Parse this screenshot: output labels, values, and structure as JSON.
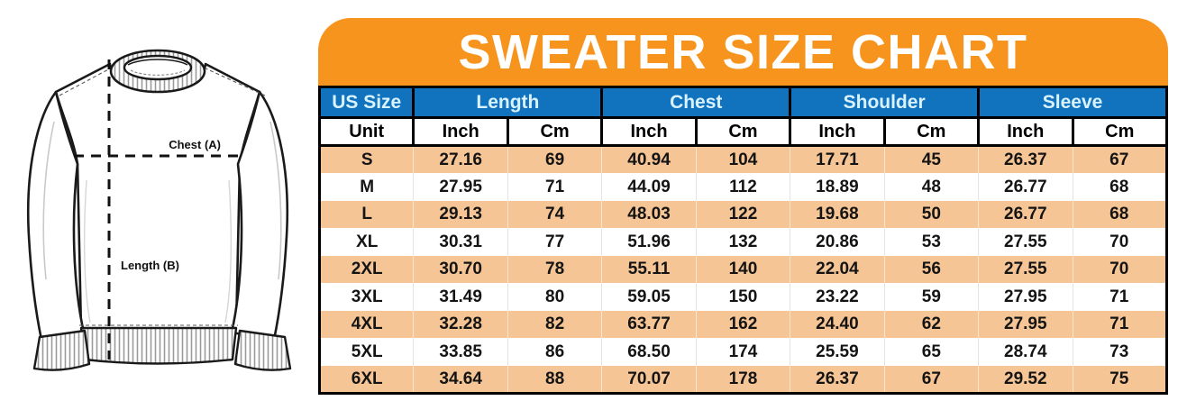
{
  "title": "SWEATER SIZE CHART",
  "diagram": {
    "name": "crewneck-sweater-measurement-diagram",
    "chest_label": "Chest (A)",
    "length_label": "Length (B)"
  },
  "table": {
    "group_headers": [
      "US Size",
      "Length",
      "Chest",
      "Shoulder",
      "Sleeve"
    ],
    "unit_row": [
      "Unit",
      "Inch",
      "Cm",
      "Inch",
      "Cm",
      "Inch",
      "Cm",
      "Inch",
      "Cm"
    ],
    "rows": [
      [
        "S",
        "27.16",
        "69",
        "40.94",
        "104",
        "17.71",
        "45",
        "26.37",
        "67"
      ],
      [
        "M",
        "27.95",
        "71",
        "44.09",
        "112",
        "18.89",
        "48",
        "26.77",
        "68"
      ],
      [
        "L",
        "29.13",
        "74",
        "48.03",
        "122",
        "19.68",
        "50",
        "26.77",
        "68"
      ],
      [
        "XL",
        "30.31",
        "77",
        "51.96",
        "132",
        "20.86",
        "53",
        "27.55",
        "70"
      ],
      [
        "2XL",
        "30.70",
        "78",
        "55.11",
        "140",
        "22.04",
        "56",
        "27.55",
        "70"
      ],
      [
        "3XL",
        "31.49",
        "80",
        "59.05",
        "150",
        "23.22",
        "59",
        "27.95",
        "71"
      ],
      [
        "4XL",
        "32.28",
        "82",
        "63.77",
        "162",
        "24.40",
        "62",
        "27.95",
        "71"
      ],
      [
        "5XL",
        "33.85",
        "86",
        "68.50",
        "174",
        "25.59",
        "65",
        "28.74",
        "73"
      ],
      [
        "6XL",
        "34.64",
        "88",
        "70.07",
        "178",
        "26.37",
        "67",
        "29.52",
        "75"
      ]
    ]
  },
  "colors": {
    "banner_orange": "#F7941E",
    "header_blue": "#1173BE",
    "header_text": "#D9F2FF",
    "row_peach": "#F6C595",
    "border_black": "#000000",
    "sweater_line": "#1a1a1a"
  }
}
